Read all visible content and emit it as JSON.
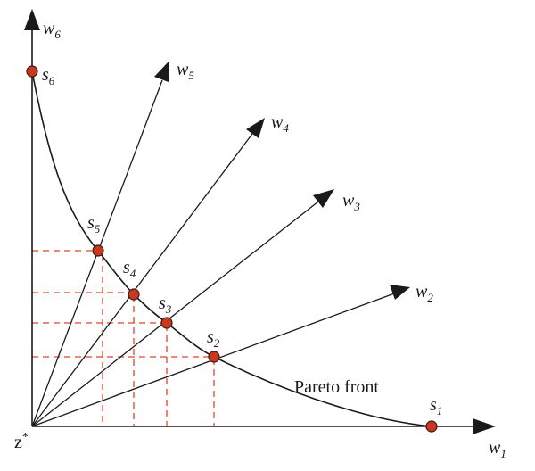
{
  "diagram": {
    "origin_label": "z*",
    "origin_label_base": "z",
    "origin_label_sup": "*",
    "front_label": "Pareto front",
    "axes": [
      {
        "id": "w1",
        "base": "w",
        "sub": "1"
      },
      {
        "id": "w6",
        "base": "w",
        "sub": "6"
      }
    ],
    "rays": [
      {
        "id": "w2",
        "base": "w",
        "sub": "2"
      },
      {
        "id": "w3",
        "base": "w",
        "sub": "3"
      },
      {
        "id": "w4",
        "base": "w",
        "sub": "4"
      },
      {
        "id": "w5",
        "base": "w",
        "sub": "5"
      }
    ],
    "solutions": [
      {
        "id": "s1",
        "base": "s",
        "sub": "1"
      },
      {
        "id": "s2",
        "base": "s",
        "sub": "2"
      },
      {
        "id": "s3",
        "base": "s",
        "sub": "3"
      },
      {
        "id": "s4",
        "base": "s",
        "sub": "4"
      },
      {
        "id": "s5",
        "base": "s",
        "sub": "5"
      },
      {
        "id": "s6",
        "base": "s",
        "sub": "6"
      }
    ],
    "colors": {
      "point_fill": "#c9391f",
      "dash_line": "#d9472b",
      "lines": "#1a1a1a"
    }
  }
}
